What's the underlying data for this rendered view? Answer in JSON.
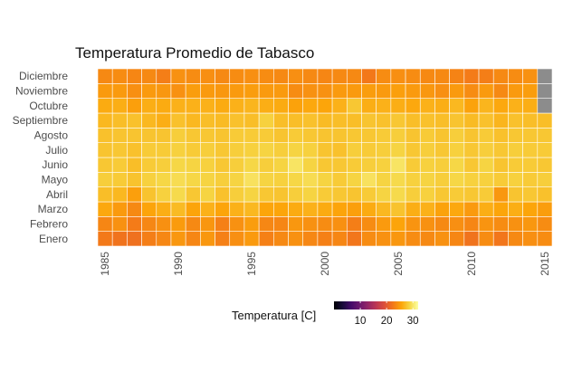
{
  "chart_data": {
    "type": "heatmap",
    "title": "Temperatura Promedio de Tabasco",
    "xlabel": "",
    "ylabel": "",
    "x_years": [
      1985,
      1986,
      1987,
      1988,
      1989,
      1990,
      1991,
      1992,
      1993,
      1994,
      1995,
      1996,
      1997,
      1998,
      1999,
      2000,
      2001,
      2002,
      2003,
      2004,
      2005,
      2006,
      2007,
      2008,
      2009,
      2010,
      2011,
      2012,
      2013,
      2014,
      2015
    ],
    "x_tick_labels": [
      "1985",
      "1990",
      "1995",
      "2000",
      "2005",
      "2010",
      "2015"
    ],
    "x_tick_values": [
      1985,
      1990,
      1995,
      2000,
      2005,
      2010,
      2015
    ],
    "months": [
      "Enero",
      "Febrero",
      "Marzo",
      "Abril",
      "Mayo",
      "Junio",
      "Julio",
      "Agosto",
      "Septiembre",
      "Octubre",
      "Noviembre",
      "Diciembre"
    ],
    "values": [
      [
        22.5,
        22.0,
        21.8,
        22.8,
        23.5,
        24.6,
        23.4,
        24.6,
        23.0,
        24.0,
        24.8,
        23.0,
        23.6,
        24.2,
        23.5,
        23.0,
        23.4,
        22.2,
        23.8,
        24.2,
        24.6,
        23.8,
        23.6,
        24.2,
        23.4,
        22.0,
        23.8,
        22.2,
        23.6,
        24.0,
        23.8
      ],
      [
        23.4,
        24.2,
        22.6,
        23.5,
        24.1,
        24.9,
        23.6,
        24.5,
        23.0,
        24.2,
        25.0,
        23.5,
        23.4,
        24.6,
        24.2,
        23.8,
        24.1,
        22.8,
        23.8,
        24.8,
        25.5,
        24.4,
        24.2,
        23.6,
        24.0,
        23.4,
        24.4,
        23.8,
        24.2,
        24.6,
        23.8
      ],
      [
        25.8,
        24.8,
        23.6,
        25.5,
        26.2,
        27.0,
        25.5,
        26.4,
        25.5,
        26.4,
        26.8,
        25.6,
        25.6,
        26.0,
        26.4,
        26.0,
        25.5,
        25.2,
        26.0,
        26.8,
        27.5,
        26.2,
        26.4,
        25.4,
        25.8,
        24.8,
        26.2,
        25.6,
        26.2,
        25.6,
        25.0
      ],
      [
        27.2,
        26.8,
        25.2,
        27.5,
        28.4,
        29.0,
        27.8,
        28.6,
        27.4,
        28.2,
        28.6,
        27.8,
        27.6,
        28.2,
        28.6,
        28.0,
        27.8,
        27.6,
        28.0,
        28.6,
        29.0,
        28.2,
        28.4,
        27.8,
        28.0,
        27.8,
        28.0,
        24.6,
        27.6,
        27.8,
        27.4
      ],
      [
        28.2,
        28.0,
        27.5,
        28.4,
        28.8,
        29.2,
        28.8,
        28.6,
        28.2,
        28.6,
        29.6,
        28.6,
        28.4,
        28.8,
        29.2,
        28.6,
        28.0,
        28.6,
        29.6,
        28.6,
        29.0,
        28.4,
        28.6,
        28.2,
        28.8,
        28.4,
        28.4,
        28.0,
        28.4,
        28.0,
        28.2
      ],
      [
        27.8,
        28.0,
        27.2,
        28.0,
        28.2,
        28.8,
        28.6,
        28.4,
        27.8,
        28.2,
        28.8,
        28.2,
        28.6,
        29.8,
        28.6,
        27.8,
        27.8,
        28.0,
        28.2,
        28.4,
        29.8,
        28.0,
        28.4,
        28.2,
        28.8,
        27.8,
        28.6,
        27.6,
        28.0,
        28.0,
        27.8
      ],
      [
        27.6,
        27.8,
        27.4,
        28.0,
        28.0,
        28.4,
        28.0,
        28.2,
        27.8,
        28.2,
        28.4,
        28.6,
        28.2,
        28.6,
        28.4,
        27.6,
        27.4,
        28.2,
        28.0,
        28.2,
        28.6,
        27.8,
        28.2,
        27.8,
        28.4,
        27.8,
        28.2,
        27.8,
        28.2,
        28.0,
        28.0
      ],
      [
        27.4,
        27.6,
        27.6,
        27.6,
        27.6,
        28.2,
        27.8,
        27.8,
        27.6,
        28.0,
        28.0,
        28.0,
        27.6,
        28.0,
        27.8,
        27.6,
        27.6,
        27.8,
        27.8,
        28.0,
        28.2,
        27.6,
        28.0,
        27.6,
        28.2,
        27.6,
        28.0,
        27.4,
        27.8,
        27.8,
        27.8
      ],
      [
        26.8,
        27.2,
        27.4,
        26.8,
        26.2,
        27.4,
        26.8,
        27.2,
        27.0,
        27.4,
        27.2,
        28.4,
        27.2,
        27.2,
        27.4,
        27.0,
        27.2,
        27.2,
        27.6,
        27.4,
        27.8,
        27.2,
        27.4,
        27.2,
        27.6,
        27.0,
        27.4,
        26.6,
        27.4,
        27.2,
        27.2
      ],
      [
        26.0,
        26.2,
        25.2,
        26.2,
        26.0,
        26.4,
        26.4,
        26.4,
        26.0,
        26.4,
        26.6,
        26.2,
        26.0,
        25.4,
        25.8,
        25.6,
        26.4,
        27.8,
        26.2,
        26.4,
        26.2,
        25.8,
        26.4,
        26.2,
        26.8,
        25.4,
        26.6,
        25.8,
        26.4,
        26.2,
        null
      ],
      [
        24.8,
        24.8,
        24.0,
        24.8,
        24.6,
        24.2,
        25.0,
        24.8,
        24.6,
        24.8,
        25.0,
        24.8,
        24.8,
        23.8,
        24.2,
        24.2,
        24.8,
        24.8,
        25.0,
        24.8,
        25.2,
        24.8,
        24.6,
        24.0,
        24.8,
        23.8,
        24.8,
        23.6,
        24.8,
        25.0,
        null
      ],
      [
        23.6,
        23.8,
        23.4,
        23.6,
        22.8,
        24.2,
        23.8,
        24.0,
        23.6,
        23.8,
        24.0,
        23.8,
        23.6,
        24.0,
        23.6,
        23.4,
        23.6,
        23.6,
        22.4,
        23.8,
        24.0,
        23.8,
        23.6,
        23.6,
        23.2,
        22.6,
        22.8,
        23.6,
        23.8,
        24.2,
        null
      ]
    ],
    "missing_color": "#8c8c8c",
    "legend": {
      "title": "Temperatura [C]",
      "ticks": [
        10,
        20,
        30
      ],
      "range": [
        0,
        32
      ],
      "placement": "bottom"
    },
    "colorscale": "inferno",
    "grid": false
  }
}
